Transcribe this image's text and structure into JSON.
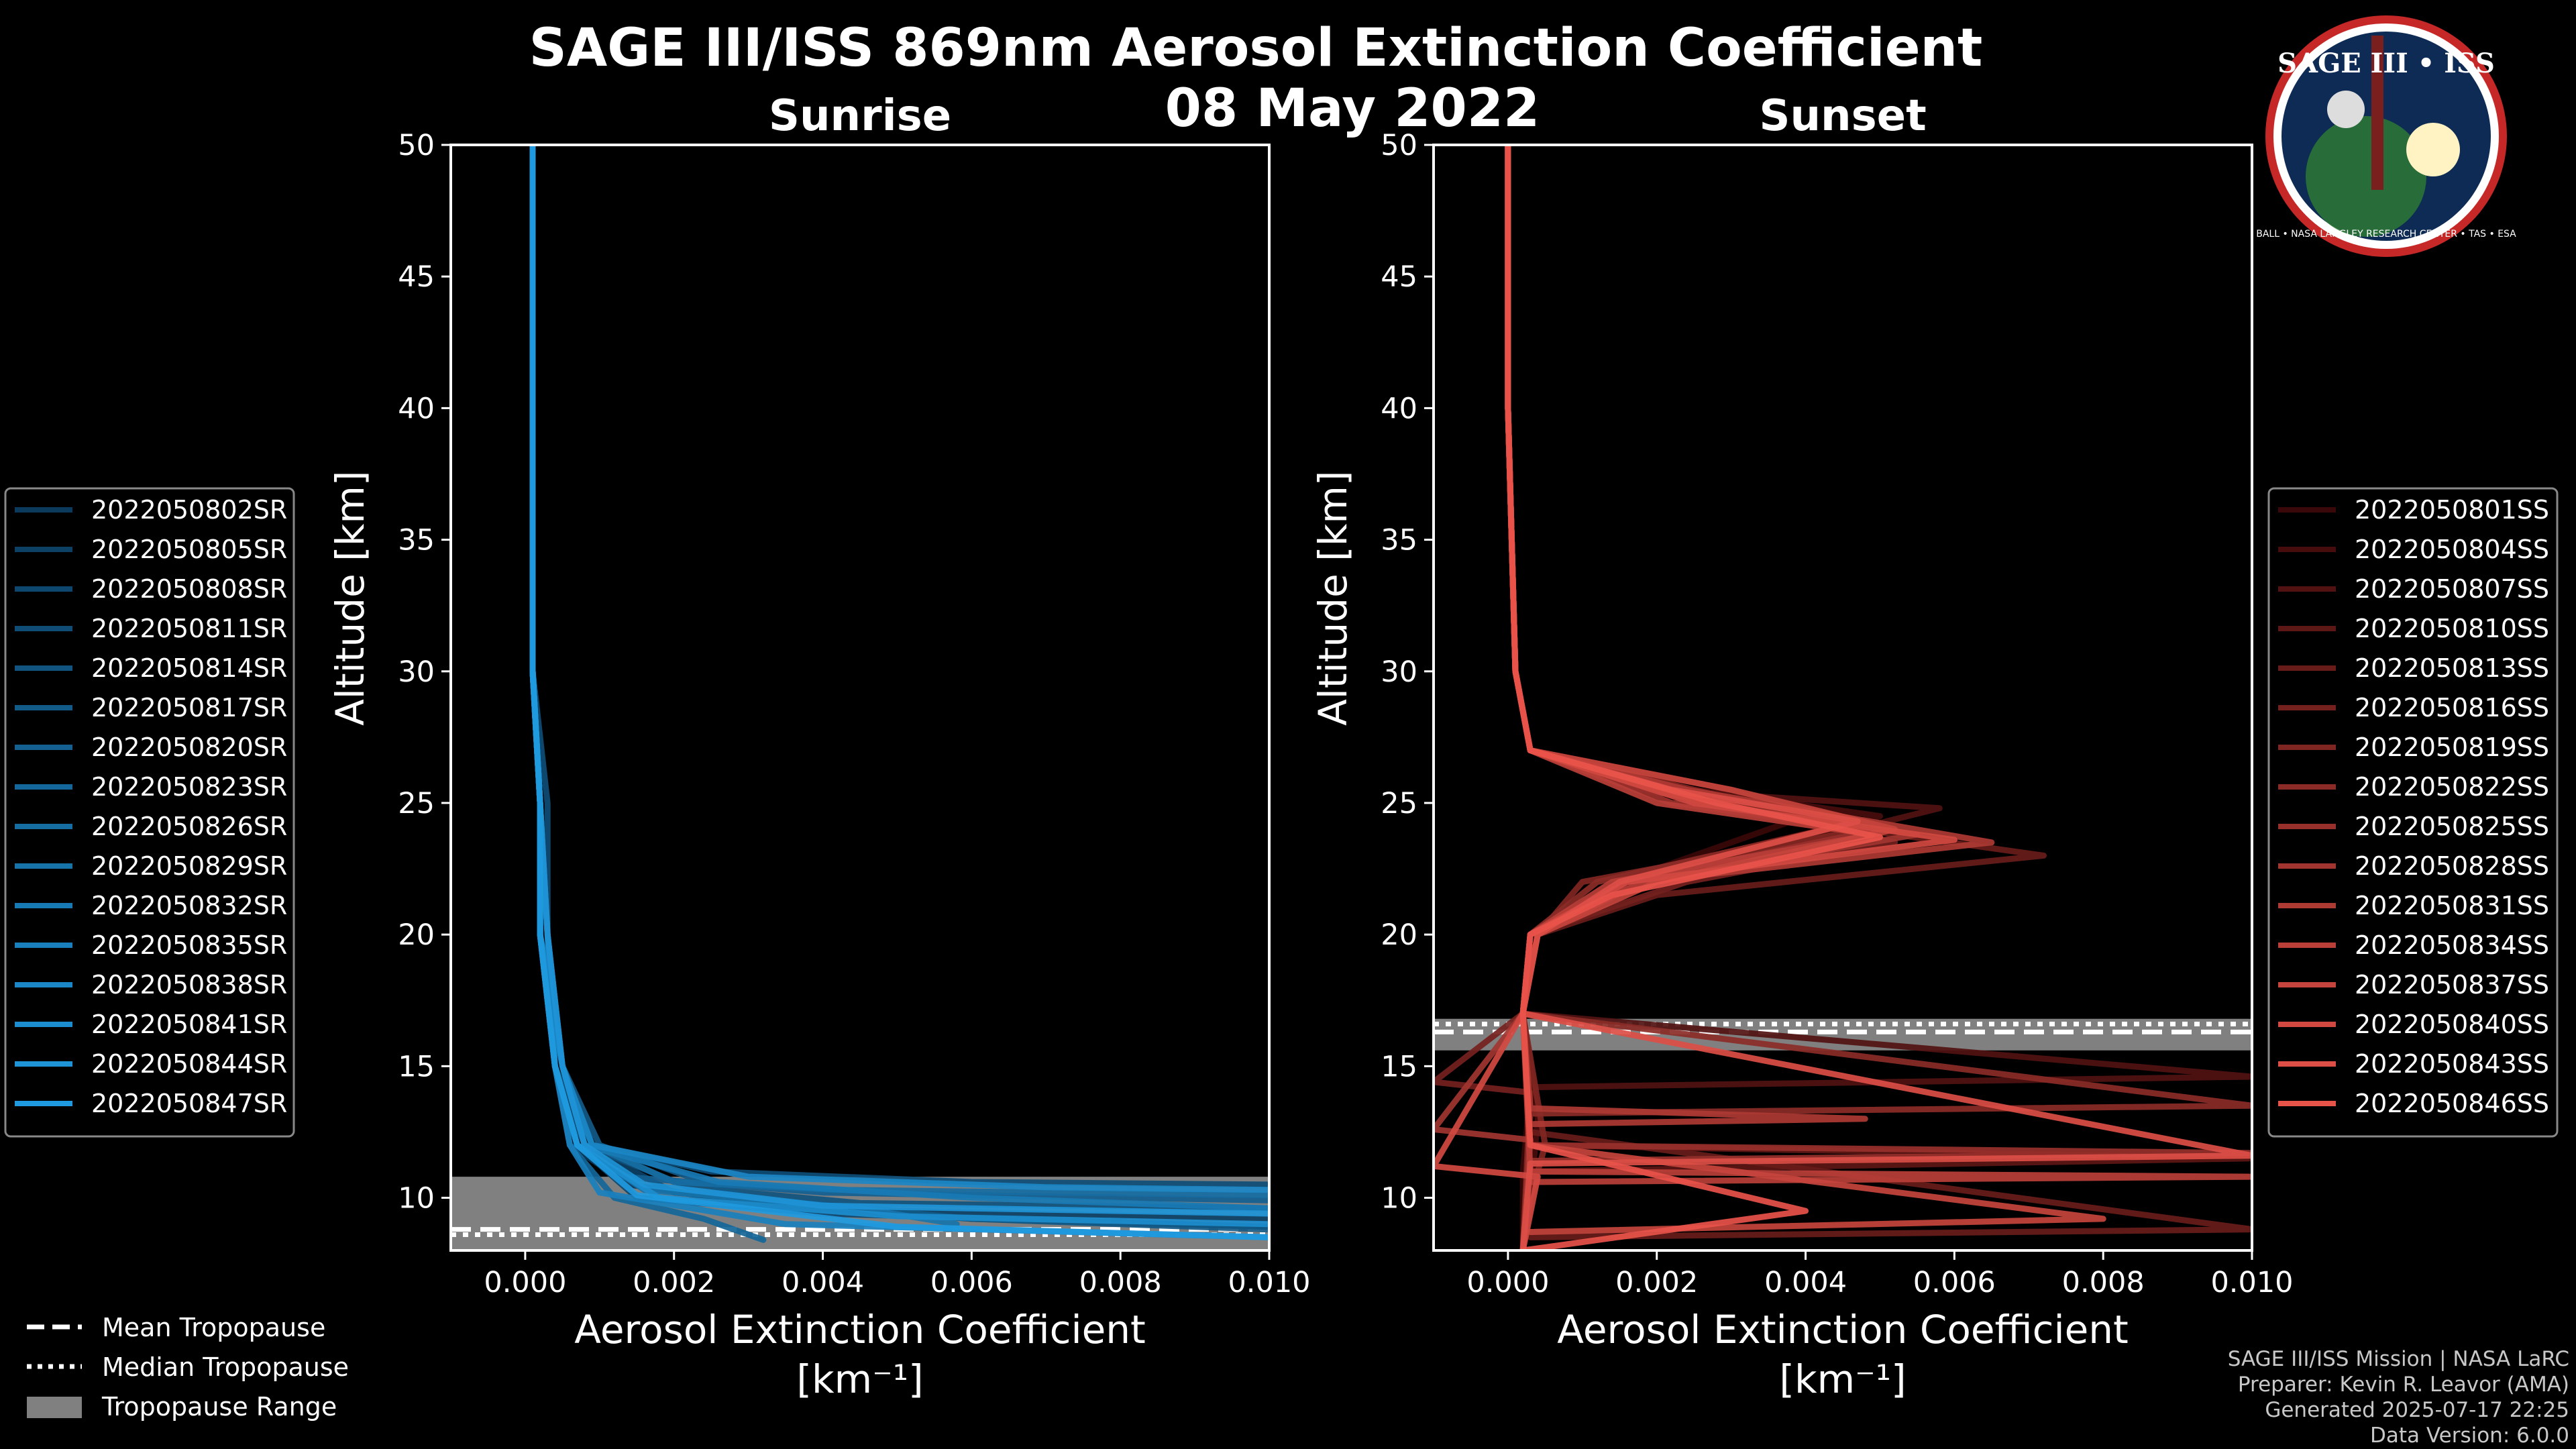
{
  "header": {
    "title": "SAGE III/ISS 869nm Aerosol Extinction Coefficient",
    "date": "08 May 2022"
  },
  "logo": {
    "title": "SAGE III • ISS",
    "ring": "BALL • NASA LANGLEY RESEARCH CENTER • TAS • ESA"
  },
  "credits": {
    "line1": "SAGE III/ISS Mission | NASA LaRC",
    "line2": "Preparer: Kevin R. Leavor (AMA)",
    "line3": "Generated 2025-07-17 22:25",
    "line4": "Data Version: 6.0.0"
  },
  "bottom_legend": {
    "mean": "Mean Tropopause",
    "median": "Median Tropopause",
    "range": "Tropopause Range"
  },
  "chart_data": [
    {
      "type": "line",
      "title": "Sunrise",
      "xlabel": "Aerosol Extinction Coefficient",
      "xunit": "[km⁻¹]",
      "ylabel": "Altitude [km]",
      "xlim": [
        -0.001,
        0.01
      ],
      "ylim": [
        8,
        50
      ],
      "xticks": [
        "0.000",
        "0.002",
        "0.004",
        "0.006",
        "0.008",
        "0.010"
      ],
      "yticks": [
        "10",
        "15",
        "20",
        "25",
        "30",
        "35",
        "40",
        "45",
        "50"
      ],
      "tropopause": {
        "mean": 8.8,
        "median": 8.6,
        "range": [
          8.0,
          10.8
        ]
      },
      "color_dark": "#0b3a5c",
      "color_light": "#1f9ae0",
      "series": [
        {
          "name": "2022050802SR",
          "x": [
            0.0001,
            0.0001,
            0.0001,
            0.0002,
            0.0002,
            0.0004,
            0.0006,
            0.0014,
            0.003,
            0.006,
            0.01
          ],
          "y": [
            50,
            40,
            30,
            25,
            20,
            15,
            12,
            10.5,
            9.8,
            9.2,
            8.9
          ]
        },
        {
          "name": "2022050805SR",
          "x": [
            0.0001,
            0.0001,
            0.0001,
            0.0002,
            0.0003,
            0.0005,
            0.0008,
            0.002,
            0.005,
            0.01
          ],
          "y": [
            50,
            40,
            30,
            25,
            20,
            15,
            12,
            10.2,
            9.5,
            9.2
          ]
        },
        {
          "name": "2022050808SR",
          "x": [
            0.0001,
            0.0001,
            0.0001,
            0.0002,
            0.0002,
            0.0004,
            0.0007,
            0.0015,
            0.004,
            0.01
          ],
          "y": [
            50,
            40,
            30,
            25,
            20,
            15,
            12,
            10.0,
            9.4,
            8.9
          ]
        },
        {
          "name": "2022050811SR",
          "x": [
            0.0001,
            0.0001,
            0.0001,
            0.0003,
            0.0003,
            0.0005,
            0.0009,
            0.0025,
            0.006,
            0.01
          ],
          "y": [
            50,
            40,
            30,
            25,
            20,
            15,
            12,
            11.0,
            10.6,
            10.5
          ]
        },
        {
          "name": "2022050814SR",
          "x": [
            0.0001,
            0.0001,
            0.0001,
            0.0002,
            0.0002,
            0.0004,
            0.0008,
            0.0022,
            0.0045,
            0.01
          ],
          "y": [
            50,
            40,
            30,
            25,
            20,
            15,
            12,
            10.4,
            9.8,
            9.6
          ]
        },
        {
          "name": "2022050817SR",
          "x": [
            0.0001,
            0.0001,
            0.0001,
            0.0002,
            0.0003,
            0.0005,
            0.001,
            0.003,
            0.006,
            0.01
          ],
          "y": [
            50,
            40,
            30,
            25,
            20,
            15,
            12,
            10.0,
            9.2,
            8.8
          ]
        },
        {
          "name": "2022050820SR",
          "x": [
            0.0001,
            0.0001,
            0.0001,
            0.0002,
            0.0002,
            0.0004,
            0.0007,
            0.0013,
            0.004,
            0.01
          ],
          "y": [
            50,
            40,
            30,
            25,
            20,
            15,
            12,
            10.8,
            10.2,
            9.9
          ]
        },
        {
          "name": "2022050823SR",
          "x": [
            0.0001,
            0.0001,
            0.0001,
            0.0002,
            0.0002,
            0.0004,
            0.0006,
            0.0012,
            0.0024,
            0.0032
          ],
          "y": [
            50,
            40,
            30,
            25,
            20,
            15,
            12,
            10.0,
            9.2,
            8.4
          ]
        },
        {
          "name": "2022050826SR",
          "x": [
            0.0001,
            0.0001,
            0.0001,
            0.0002,
            0.0003,
            0.0005,
            0.0009,
            0.002,
            0.0042,
            0.01
          ],
          "y": [
            50,
            40,
            30,
            25,
            20,
            15,
            12,
            10.6,
            10.3,
            10.1
          ]
        },
        {
          "name": "2022050829SR",
          "x": [
            0.0001,
            0.0001,
            0.0001,
            0.0002,
            0.0002,
            0.0004,
            0.0007,
            0.0016,
            0.0045,
            0.0058
          ],
          "y": [
            50,
            40,
            30,
            25,
            20,
            15,
            12,
            10.3,
            9.6,
            9.0
          ]
        },
        {
          "name": "2022050832SR",
          "x": [
            0.0001,
            0.0001,
            0.0001,
            0.0002,
            0.0002,
            0.0005,
            0.0008,
            0.0026,
            0.006,
            0.01
          ],
          "y": [
            50,
            40,
            30,
            25,
            20,
            15,
            12,
            10.6,
            10.0,
            9.6
          ]
        },
        {
          "name": "2022050835SR",
          "x": [
            0.0001,
            0.0001,
            0.0001,
            0.0002,
            0.0003,
            0.0004,
            0.0006,
            0.001,
            0.0035,
            0.01
          ],
          "y": [
            50,
            40,
            30,
            25,
            20,
            15,
            12,
            10.2,
            9.0,
            8.5
          ]
        },
        {
          "name": "2022050838SR",
          "x": [
            0.0001,
            0.0001,
            0.0001,
            0.0002,
            0.0002,
            0.0005,
            0.0009,
            0.003,
            0.007,
            0.01
          ],
          "y": [
            50,
            40,
            30,
            25,
            20,
            15,
            12,
            10.8,
            10.4,
            10.3
          ]
        },
        {
          "name": "2022050841SR",
          "x": [
            0.0001,
            0.0001,
            0.0001,
            0.0002,
            0.0002,
            0.0004,
            0.0007,
            0.0018,
            0.005,
            0.01
          ],
          "y": [
            50,
            40,
            30,
            25,
            20,
            15,
            12,
            10.0,
            9.3,
            9.0
          ]
        },
        {
          "name": "2022050844SR",
          "x": [
            0.0001,
            0.0001,
            0.0001,
            0.0002,
            0.0003,
            0.0005,
            0.0008,
            0.0016,
            0.004,
            0.01
          ],
          "y": [
            50,
            40,
            30,
            25,
            20,
            15,
            12,
            10.5,
            9.7,
            9.4
          ]
        },
        {
          "name": "2022050847SR",
          "x": [
            0.0001,
            0.0001,
            0.0001,
            0.0002,
            0.0002,
            0.0004,
            0.0007,
            0.0015,
            0.005,
            0.01
          ],
          "y": [
            50,
            40,
            30,
            25,
            20,
            15,
            12,
            10.1,
            8.9,
            8.5
          ]
        }
      ]
    },
    {
      "type": "line",
      "title": "Sunset",
      "xlabel": "Aerosol Extinction Coefficient",
      "xunit": "[km⁻¹]",
      "ylabel": "Altitude [km]",
      "xlim": [
        -0.001,
        0.01
      ],
      "ylim": [
        8,
        50
      ],
      "xticks": [
        "0.000",
        "0.002",
        "0.004",
        "0.006",
        "0.008",
        "0.010"
      ],
      "yticks": [
        "10",
        "15",
        "20",
        "25",
        "30",
        "35",
        "40",
        "45",
        "50"
      ],
      "tropopause": {
        "mean": 16.3,
        "median": 16.6,
        "range": [
          15.6,
          16.8
        ]
      },
      "color_dark": "#3a0808",
      "color_light": "#e8534a",
      "series": [
        {
          "name": "2022050801SS",
          "x": [
            0.0,
            0.0,
            0.0001,
            0.0003,
            0.002,
            0.004,
            0.0015,
            0.0003,
            0.0002,
            0.0003,
            0.0002,
            0.0002
          ],
          "y": [
            50,
            40,
            30,
            27,
            25.5,
            24.5,
            22,
            20,
            17,
            14,
            11,
            8
          ]
        },
        {
          "name": "2022050804SS",
          "x": [
            0.0,
            0.0,
            0.0001,
            0.0003,
            0.0025,
            0.005,
            0.002,
            0.0004,
            0.0002,
            0.0004,
            0.0003,
            0.0002
          ],
          "y": [
            50,
            40,
            30,
            27,
            25.5,
            24.5,
            22.5,
            20,
            17,
            13,
            10,
            8
          ]
        },
        {
          "name": "2022050807SS",
          "x": [
            0.0,
            0.0,
            0.0001,
            0.0003,
            0.002,
            0.0058,
            0.0018,
            0.0003,
            0.0002,
            0.01,
            0.0003,
            0.0002
          ],
          "y": [
            50,
            40,
            30,
            27,
            25.5,
            24.8,
            22,
            20,
            17,
            14.6,
            14.2,
            8
          ]
        },
        {
          "name": "2022050810SS",
          "x": [
            0.0,
            0.0,
            0.0001,
            0.0003,
            0.003,
            0.0044,
            0.0015,
            0.0003,
            0.0002,
            0.0003,
            0.01,
            0.0003
          ],
          "y": [
            50,
            40,
            30,
            27,
            25.5,
            24,
            22,
            20,
            17,
            12,
            11.5,
            11
          ]
        },
        {
          "name": "2022050813SS",
          "x": [
            0.0,
            0.0,
            0.0001,
            0.0003,
            0.0022,
            0.0072,
            0.002,
            0.0004,
            0.0002,
            0.0003,
            0.01,
            0.0003
          ],
          "y": [
            50,
            40,
            30,
            27,
            25,
            23,
            21.5,
            20,
            17,
            12.5,
            8.8,
            8.5
          ]
        },
        {
          "name": "2022050816SS",
          "x": [
            0.0,
            0.0,
            0.0001,
            0.0003,
            0.0028,
            0.0052,
            0.0024,
            0.0003,
            0.0002,
            -0.001,
            0.0003,
            0.0002
          ],
          "y": [
            50,
            40,
            30,
            27,
            25,
            23.5,
            22,
            20,
            17,
            14.4,
            14,
            8
          ]
        },
        {
          "name": "2022050819SS",
          "x": [
            0.0,
            0.0,
            0.0001,
            0.0003,
            0.0025,
            0.0048,
            0.001,
            0.0004,
            0.0002,
            0.0005,
            0.0003,
            0.0002
          ],
          "y": [
            50,
            40,
            30,
            27,
            25.5,
            24,
            22,
            20,
            17,
            12,
            10,
            8
          ]
        },
        {
          "name": "2022050822SS",
          "x": [
            0.0,
            0.0,
            0.0001,
            0.0003,
            0.0018,
            0.0046,
            0.0012,
            0.0003,
            0.0002,
            0.01,
            0.0003,
            0.0002
          ],
          "y": [
            50,
            40,
            30,
            27,
            25.5,
            24.2,
            22,
            20,
            17,
            13.5,
            13.2,
            8
          ]
        },
        {
          "name": "2022050825SS",
          "x": [
            0.0,
            0.0,
            0.0001,
            0.0003,
            0.0022,
            0.005,
            0.0016,
            0.0003,
            0.0002,
            0.0003,
            0.01,
            0.0003
          ],
          "y": [
            50,
            40,
            30,
            27,
            25,
            24,
            22,
            20,
            17,
            12,
            11.7,
            11.4
          ]
        },
        {
          "name": "2022050828SS",
          "x": [
            0.0,
            0.0,
            0.0001,
            0.0003,
            0.0026,
            0.0055,
            0.0018,
            0.0004,
            0.0002,
            -0.001,
            0.0003,
            0.0002
          ],
          "y": [
            50,
            40,
            30,
            27,
            25,
            23.8,
            22,
            20,
            17,
            12.6,
            12.2,
            8
          ]
        },
        {
          "name": "2022050831SS",
          "x": [
            0.0,
            0.0,
            0.0001,
            0.0003,
            0.0024,
            0.0065,
            0.0018,
            0.0003,
            0.0002,
            0.0003,
            0.0048,
            0.0003
          ],
          "y": [
            50,
            40,
            30,
            27,
            25.5,
            23.5,
            22,
            20,
            17,
            13.4,
            13,
            12.8
          ]
        },
        {
          "name": "2022050834SS",
          "x": [
            0.0,
            0.0,
            0.0001,
            0.0003,
            0.002,
            0.0049,
            0.0014,
            0.0003,
            0.0002,
            0.0003,
            0.01,
            0.0003
          ],
          "y": [
            50,
            40,
            30,
            27,
            25,
            23.8,
            22,
            20,
            17,
            11,
            10.8,
            10.6
          ]
        },
        {
          "name": "2022050837SS",
          "x": [
            0.0,
            0.0,
            0.0001,
            0.0003,
            0.003,
            0.0052,
            0.002,
            0.0004,
            0.0002,
            0.0003,
            0.008,
            0.0003
          ],
          "y": [
            50,
            40,
            30,
            27,
            25.5,
            24,
            22,
            20,
            17,
            12,
            9.2,
            8.7
          ]
        },
        {
          "name": "2022050840SS",
          "x": [
            0.0,
            0.0,
            0.0001,
            0.0003,
            0.0025,
            0.006,
            0.0016,
            0.0003,
            0.0002,
            -0.001,
            0.0004,
            0.0002
          ],
          "y": [
            50,
            40,
            30,
            27,
            25,
            23.6,
            22,
            20,
            17,
            11.2,
            10.8,
            8
          ]
        },
        {
          "name": "2022050843SS",
          "x": [
            0.0,
            0.0,
            0.0001,
            0.0003,
            0.0022,
            0.0047,
            0.0015,
            0.0004,
            0.0002,
            0.01,
            0.0003,
            0.0002
          ],
          "y": [
            50,
            40,
            30,
            27,
            25.5,
            24.3,
            22,
            20,
            17,
            11.6,
            11.3,
            8
          ]
        },
        {
          "name": "2022050846SS",
          "x": [
            0.0,
            0.0,
            0.0001,
            0.0003,
            0.0028,
            0.005,
            0.0014,
            0.0003,
            0.0002,
            0.0003,
            0.004,
            0.0002
          ],
          "y": [
            50,
            40,
            30,
            27,
            25,
            23.7,
            21.5,
            20,
            17,
            12,
            9.5,
            8
          ]
        }
      ]
    }
  ]
}
